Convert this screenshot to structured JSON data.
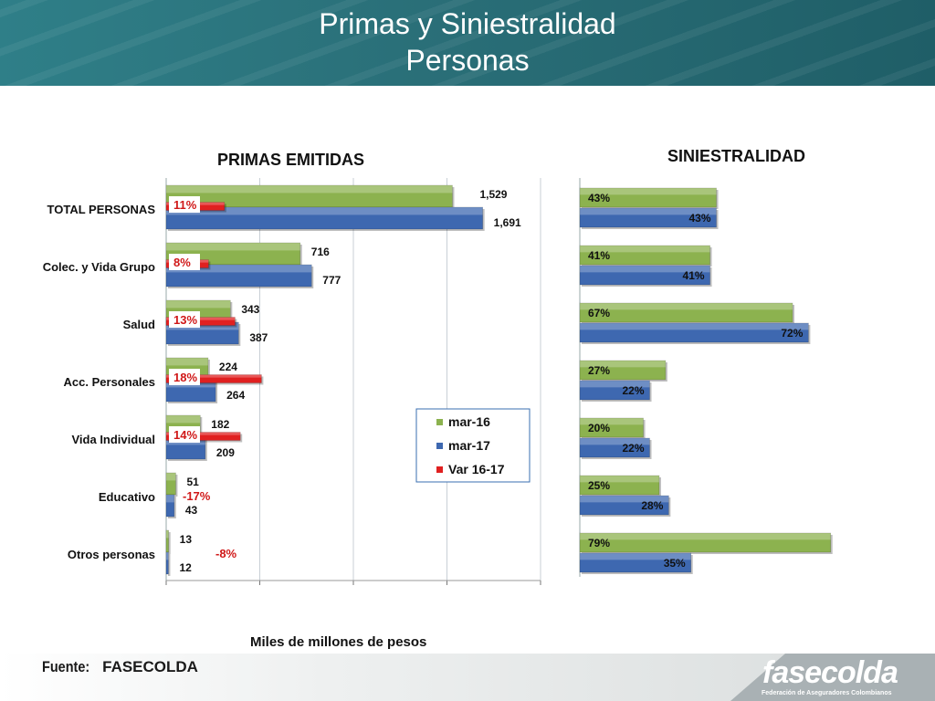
{
  "header": {
    "title_line1": "Primas y Siniestralidad",
    "title_line2": "Personas"
  },
  "footer": {
    "source_label": "Fuente:",
    "source_value": "FASECOLDA",
    "logo_text": "fasecolda",
    "logo_subtitle": "Federación de Aseguradores Colombianos"
  },
  "colors": {
    "green": "#8cb24f",
    "blue": "#3e68b0",
    "red": "#e02020",
    "header": "#2a6f78",
    "var_text": "#d01818"
  },
  "chart_data": [
    {
      "type": "bar",
      "title": "PRIMAS EMITIDAS",
      "xlabel": "Miles de millones de pesos",
      "orientation": "horizontal",
      "categories": [
        "TOTAL PERSONAS",
        "Colec. y Vida Grupo",
        "Salud",
        "Acc. Personales",
        "Vida Individual",
        "Educativo",
        "Otros personas"
      ],
      "series": [
        {
          "name": "mar-16",
          "values": [
            1529,
            716,
            343,
            224,
            182,
            51,
            13
          ],
          "labels": [
            "1,529",
            "716",
            "343",
            "224",
            "182",
            "51",
            "13"
          ]
        },
        {
          "name": "mar-17",
          "values": [
            1691,
            777,
            387,
            264,
            209,
            43,
            12
          ],
          "labels": [
            "1,691",
            "777",
            "387",
            "264",
            "209",
            "43",
            "12"
          ]
        },
        {
          "name": "Var 16-17",
          "values": [
            11,
            8,
            13,
            18,
            14,
            -17,
            -8
          ],
          "labels": [
            "11%",
            "8%",
            "13%",
            "18%",
            "14%",
            "-17%",
            "-8%"
          ]
        }
      ],
      "xlim": [
        0,
        2000
      ],
      "legend": "bottom-right"
    },
    {
      "type": "bar",
      "title": "SINIESTRALIDAD",
      "orientation": "horizontal",
      "categories": [
        "TOTAL PERSONAS",
        "Colec. y Vida Grupo",
        "Salud",
        "Acc. Personales",
        "Vida Individual",
        "Educativo",
        "Otros personas"
      ],
      "series": [
        {
          "name": "mar-16",
          "values": [
            43,
            41,
            67,
            27,
            20,
            25,
            79
          ],
          "labels": [
            "43%",
            "41%",
            "67%",
            "27%",
            "20%",
            "25%",
            "79%"
          ]
        },
        {
          "name": "mar-17",
          "values": [
            43,
            41,
            72,
            22,
            22,
            28,
            35
          ],
          "labels": [
            "43%",
            "41%",
            "72%",
            "22%",
            "22%",
            "28%",
            "35%"
          ]
        }
      ]
    }
  ]
}
